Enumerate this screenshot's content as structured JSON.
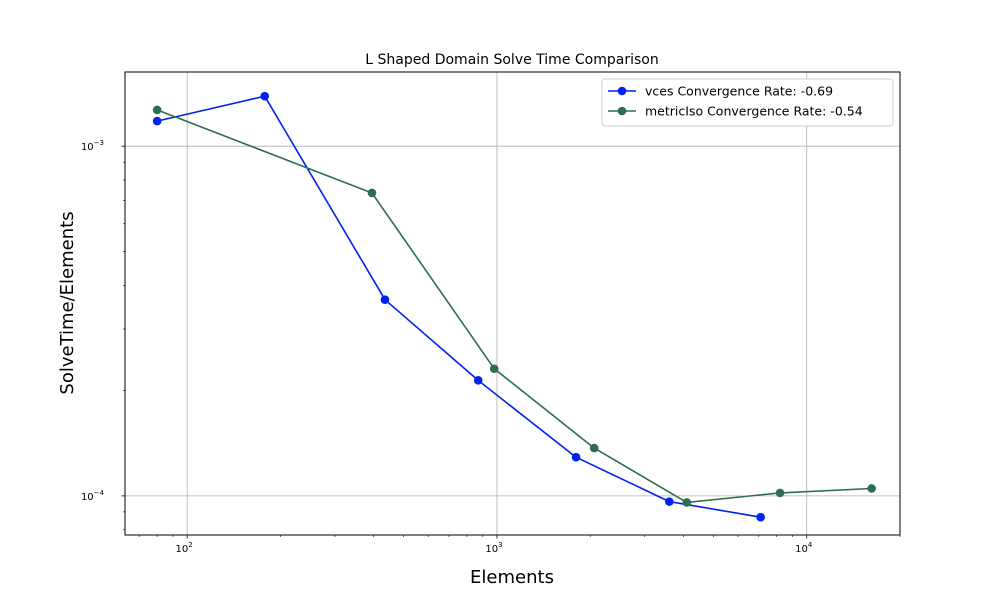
{
  "chart_data": {
    "type": "line",
    "title": "L Shaped Domain Solve Time Comparison",
    "xlabel": "Elements",
    "ylabel": "SolveTime/Elements",
    "xscale": "log",
    "yscale": "log",
    "xlim": [
      63,
      20000
    ],
    "ylim": [
      7.73e-05,
      0.00163
    ],
    "grid": true,
    "legend_position": "top-right",
    "x_ticks": [
      {
        "value": 100,
        "base": "10",
        "exp": "2"
      },
      {
        "value": 1000,
        "base": "10",
        "exp": "3"
      },
      {
        "value": 10000,
        "base": "10",
        "exp": "4"
      }
    ],
    "y_ticks": [
      {
        "value": 0.0001,
        "base": "10",
        "exp": "−4"
      },
      {
        "value": 0.001,
        "base": "10",
        "exp": "−3"
      }
    ],
    "series": [
      {
        "name": "vces Convergence Rate: -0.69",
        "color": "#0022ee",
        "x": [
          80,
          178,
          435,
          870,
          1800,
          3600,
          7100
        ],
        "y": [
          0.00118,
          0.00139,
          0.000364,
          0.000214,
          0.000129,
          9.63e-05,
          8.69e-05
        ]
      },
      {
        "name": "metricIso Convergence Rate: -0.54",
        "color": "#2e6e50",
        "x": [
          80,
          395,
          980,
          2060,
          4100,
          8200,
          16200
        ],
        "y": [
          0.00127,
          0.000735,
          0.000231,
          0.000137,
          9.58e-05,
          0.000102,
          0.000105
        ]
      }
    ]
  }
}
